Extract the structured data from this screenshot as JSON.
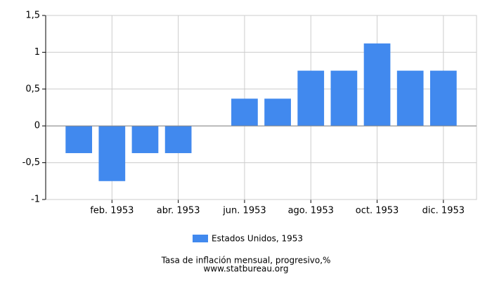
{
  "chart_data": {
    "type": "bar",
    "title": "Tasa de inflación mensual, progresivo,%",
    "source": "www.statbureau.org",
    "categories": [
      null,
      "feb. 1953",
      null,
      "abr. 1953",
      null,
      "jun. 1953",
      null,
      "ago. 1953",
      null,
      "oct. 1953",
      null,
      "dic. 1953"
    ],
    "series": [
      {
        "name": "Estados Unidos, 1953",
        "color": "#4189ee",
        "values": [
          -0.37,
          -0.75,
          -0.37,
          -0.37,
          0,
          0.37,
          0.37,
          0.75,
          0.75,
          1.12,
          0.75,
          0.75
        ]
      }
    ],
    "ylim": [
      -1,
      1.5
    ],
    "yticks": [
      -1,
      {
        "value": -0.5,
        "label": "-0,5"
      },
      0,
      {
        "value": 0.5,
        "label": "0,5"
      },
      1,
      {
        "value": 1.5,
        "label": "1,5"
      }
    ],
    "grid": true
  }
}
